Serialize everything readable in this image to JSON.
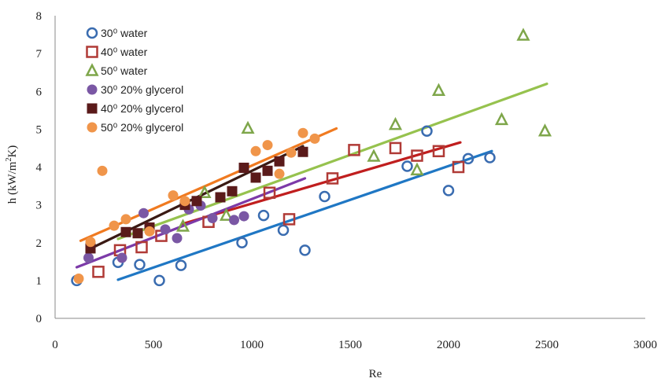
{
  "chart_data": {
    "type": "scatter",
    "title": "",
    "xlabel": "Re",
    "ylabel": "h (kW/m²K)",
    "xlim": [
      0,
      3000
    ],
    "ylim": [
      0,
      8
    ],
    "xticks": [
      0,
      500,
      1000,
      1500,
      2000,
      2500,
      3000
    ],
    "yticks": [
      0,
      1,
      2,
      3,
      4,
      5,
      6,
      7,
      8
    ],
    "grid": false,
    "legend_position": "top-left",
    "series": [
      {
        "name": "30⁰ water",
        "marker": "circle-open",
        "color": "#3a6cb0",
        "trend": {
          "color": "#1f77c4",
          "from": [
            320,
            1.02
          ],
          "to": [
            2220,
            4.42
          ]
        },
        "points": [
          [
            110,
            1.0
          ],
          [
            320,
            1.48
          ],
          [
            430,
            1.42
          ],
          [
            530,
            1.0
          ],
          [
            640,
            1.4
          ],
          [
            950,
            2.0
          ],
          [
            1060,
            2.72
          ],
          [
            1160,
            2.33
          ],
          [
            1270,
            1.8
          ],
          [
            1370,
            3.22
          ],
          [
            1790,
            4.02
          ],
          [
            1890,
            4.95
          ],
          [
            2000,
            3.38
          ],
          [
            2100,
            4.22
          ],
          [
            2210,
            4.25
          ]
        ]
      },
      {
        "name": "40⁰ water",
        "marker": "square-open",
        "color": "#b03a36",
        "trend": {
          "color": "#c01e1e",
          "from": [
            650,
            2.5
          ],
          "to": [
            2060,
            4.65
          ]
        },
        "points": [
          [
            220,
            1.23
          ],
          [
            330,
            1.8
          ],
          [
            440,
            1.88
          ],
          [
            540,
            2.18
          ],
          [
            780,
            2.55
          ],
          [
            1090,
            3.32
          ],
          [
            1190,
            2.62
          ],
          [
            1410,
            3.7
          ],
          [
            1520,
            4.45
          ],
          [
            1730,
            4.5
          ],
          [
            1840,
            4.3
          ],
          [
            1950,
            4.42
          ],
          [
            2050,
            4.0
          ]
        ]
      },
      {
        "name": "50⁰ water",
        "marker": "triangle-open",
        "color": "#7ea64a",
        "trend": {
          "color": "#96c24e",
          "from": [
            320,
            2.1
          ],
          "to": [
            2500,
            6.2
          ]
        },
        "points": [
          [
            650,
            2.43
          ],
          [
            760,
            3.32
          ],
          [
            870,
            2.72
          ],
          [
            980,
            5.02
          ],
          [
            1620,
            4.28
          ],
          [
            1730,
            5.12
          ],
          [
            1840,
            3.92
          ],
          [
            1950,
            6.02
          ],
          [
            2270,
            5.25
          ],
          [
            2380,
            7.48
          ],
          [
            2490,
            4.95
          ]
        ]
      },
      {
        "name": "30⁰ 20% glycerol",
        "marker": "circle-filled",
        "color": "#7a57a4",
        "trend": {
          "color": "#7c3aa8",
          "from": [
            110,
            1.35
          ],
          "to": [
            1270,
            3.7
          ]
        },
        "points": [
          [
            170,
            1.6
          ],
          [
            340,
            1.6
          ],
          [
            450,
            2.78
          ],
          [
            560,
            2.35
          ],
          [
            620,
            2.12
          ],
          [
            680,
            2.88
          ],
          [
            740,
            2.98
          ],
          [
            800,
            2.65
          ],
          [
            910,
            2.6
          ],
          [
            960,
            2.7
          ]
        ]
      },
      {
        "name": "40⁰ 20% glycerol",
        "marker": "square-filled",
        "color": "#5a1a1a",
        "trend": {
          "color": "#3a1a14",
          "from": [
            170,
            1.82
          ],
          "to": [
            1260,
            4.55
          ]
        },
        "points": [
          [
            180,
            1.85
          ],
          [
            360,
            2.28
          ],
          [
            420,
            2.25
          ],
          [
            480,
            2.4
          ],
          [
            660,
            3.0
          ],
          [
            720,
            3.1
          ],
          [
            840,
            3.2
          ],
          [
            900,
            3.36
          ],
          [
            960,
            3.98
          ],
          [
            1020,
            3.72
          ],
          [
            1080,
            3.9
          ],
          [
            1140,
            4.15
          ],
          [
            1260,
            4.4
          ]
        ]
      },
      {
        "name": "50⁰ 20% glycerol",
        "marker": "circle-filled",
        "color": "#f0954a",
        "trend": {
          "color": "#f07a20",
          "from": [
            130,
            2.05
          ],
          "to": [
            1430,
            5.02
          ]
        },
        "points": [
          [
            120,
            1.05
          ],
          [
            180,
            2.02
          ],
          [
            240,
            3.9
          ],
          [
            300,
            2.45
          ],
          [
            360,
            2.62
          ],
          [
            480,
            2.3
          ],
          [
            600,
            3.25
          ],
          [
            660,
            3.1
          ],
          [
            1020,
            4.42
          ],
          [
            1080,
            4.58
          ],
          [
            1140,
            3.82
          ],
          [
            1200,
            4.38
          ],
          [
            1260,
            4.9
          ],
          [
            1320,
            4.75
          ]
        ]
      }
    ]
  }
}
